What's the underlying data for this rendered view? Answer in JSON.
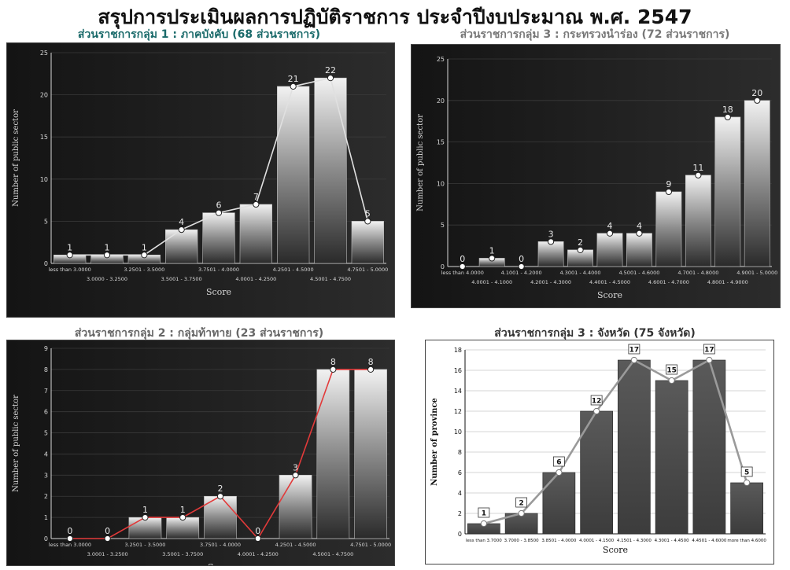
{
  "title": "สรุปการประเมินผลการปฏิบัติราชการ ประจำปีงบประมาณ พ.ศ. 2547",
  "colors": {
    "dark_bg": "#1f1f1f",
    "accent": "#e0e0e0",
    "line_red": "#e23a3a",
    "light_bg": "#ffffff"
  },
  "chart_data": [
    {
      "id": "g1",
      "type": "bar",
      "subtitle": "ส่วนราชการกลุ่ม 1 : ภาคบังคับ (68 ส่วนราชการ)",
      "xlabel": "Score",
      "ylabel": "Number of public sector",
      "ylim": [
        0,
        25
      ],
      "yticks": [
        0,
        5,
        10,
        15,
        20,
        25
      ],
      "categories": [
        "less than 3.0000",
        "3.0000 - 3.2500",
        "3.2501 - 3.5000",
        "3.5001 - 3.7500",
        "3.7501 - 4.0000",
        "4.0001 - 4.2500",
        "4.2501 - 4.5000",
        "4.5001 - 4.7500",
        "4.7501 - 5.0000"
      ],
      "values": [
        1,
        1,
        1,
        4,
        6,
        7,
        21,
        22,
        5
      ],
      "grid": true,
      "legend": "none"
    },
    {
      "id": "g3a",
      "type": "bar",
      "subtitle": "ส่วนราชการกลุ่ม 3 : กระทรวงนำร่อง (72 ส่วนราชการ)",
      "xlabel": "Score",
      "ylabel": "Number of public sector",
      "ylim": [
        0,
        25
      ],
      "yticks": [
        0,
        5,
        10,
        15,
        20,
        25
      ],
      "categories": [
        "less than 4.0000",
        "4.0001 - 4.1000",
        "4.1001 - 4.2000",
        "4.2001 - 4.3000",
        "4.3001 - 4.4000",
        "4.4001 - 4.5000",
        "4.5001 - 4.6000",
        "4.6001 - 4.7000",
        "4.7001 - 4.8000",
        "4.8001 - 4.9000",
        "4.9001 - 5.0000"
      ],
      "values": [
        0,
        1,
        0,
        3,
        2,
        4,
        4,
        9,
        11,
        18,
        20
      ],
      "grid": true,
      "legend": "none"
    },
    {
      "id": "g2",
      "type": "bar",
      "subtitle": "ส่วนราชการกลุ่ม 2 : กลุ่มท้าทาย (23 ส่วนราชการ)",
      "xlabel": "Score",
      "ylabel": "Number of public sector",
      "ylim": [
        0,
        9
      ],
      "yticks": [
        0,
        1,
        2,
        3,
        4,
        5,
        6,
        7,
        8,
        9
      ],
      "categories": [
        "less than 3.0000",
        "3.0001 - 3.2500",
        "3.2501 - 3.5000",
        "3.5001 - 3.7500",
        "3.7501 - 4.0000",
        "4.0001 - 4.2500",
        "4.2501 - 4.5000",
        "4.5001 - 4.7500",
        "4.7501 - 5.0000"
      ],
      "values": [
        0,
        0,
        1,
        1,
        2,
        0,
        3,
        8,
        8
      ],
      "grid": true,
      "legend": "none"
    },
    {
      "id": "g3b",
      "type": "bar",
      "subtitle": "ส่วนราชการกลุ่ม 3 : จังหวัด (75 จังหวัด)",
      "xlabel": "Score",
      "ylabel": "Number of province",
      "ylim": [
        0,
        18
      ],
      "yticks": [
        0,
        2,
        4,
        6,
        8,
        10,
        12,
        14,
        16,
        18
      ],
      "categories": [
        "less than 3.7000",
        "3.7000 - 3.8500",
        "3.8501 - 4.0000",
        "4.0001 - 4.1500",
        "4.1501 - 4.3000",
        "4.3001 - 4.4500",
        "4.4501 - 4.6000",
        "more than 4.6000"
      ],
      "values": [
        1,
        2,
        6,
        12,
        17,
        15,
        17,
        5
      ],
      "grid": true,
      "legend": "none"
    }
  ]
}
